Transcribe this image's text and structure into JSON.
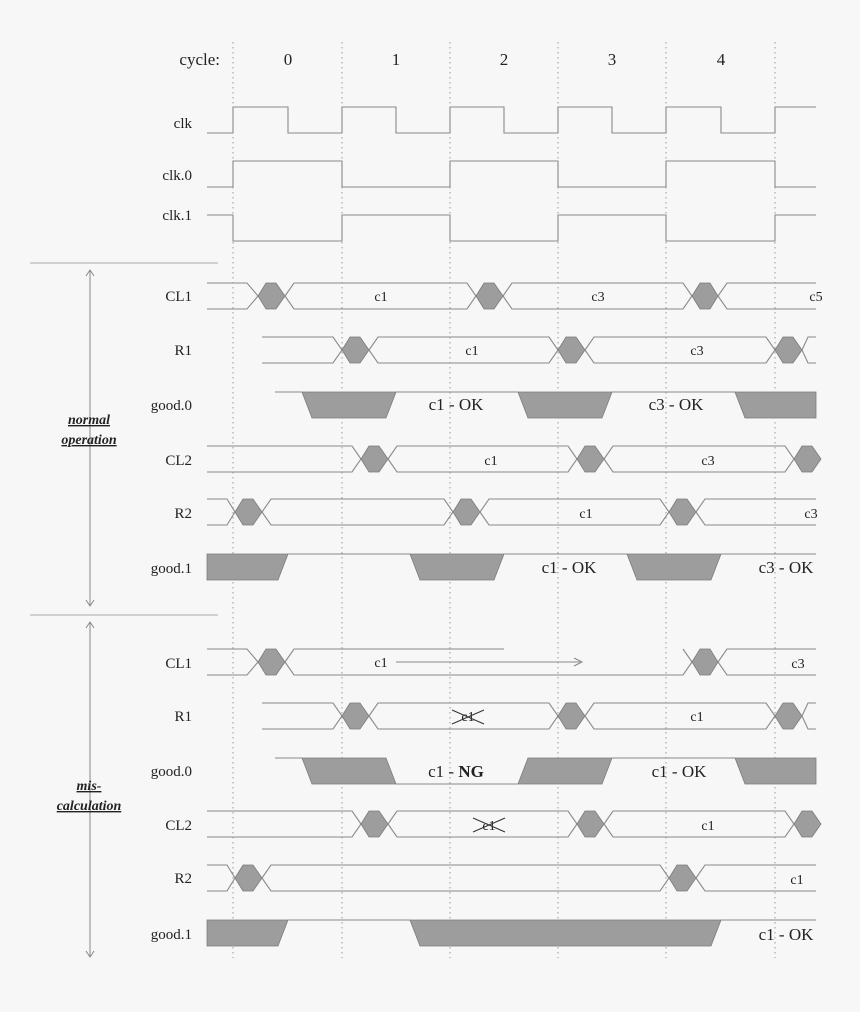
{
  "cycle_header": {
    "label": "cycle:",
    "cycles": [
      "0",
      "1",
      "2",
      "3",
      "4"
    ]
  },
  "clock_signals": [
    "clk",
    "clk.0",
    "clk.1"
  ],
  "sections": [
    {
      "title_line1": "normal",
      "title_line2": "operation",
      "signals": [
        {
          "name": "CL1",
          "values": [
            "c1",
            "c3",
            "c5"
          ]
        },
        {
          "name": "R1",
          "values": [
            "c1",
            "c3"
          ]
        },
        {
          "name": "good.0",
          "values": [
            "c1 - OK",
            "c3 - OK"
          ]
        },
        {
          "name": "CL2",
          "values": [
            "c1",
            "c3"
          ]
        },
        {
          "name": "R2",
          "values": [
            "c1",
            "c3"
          ]
        },
        {
          "name": "good.1",
          "values": [
            "c1 - OK",
            "c3 - OK"
          ]
        }
      ]
    },
    {
      "title_line1": "mis-",
      "title_line2": "calculation",
      "signals": [
        {
          "name": "CL1",
          "values": [
            "c1",
            "c3"
          ]
        },
        {
          "name": "R1",
          "values": [
            "c1",
            "c1"
          ]
        },
        {
          "name": "good.0",
          "values": [
            "c1 - ",
            "NG",
            "c1 - OK"
          ]
        },
        {
          "name": "CL2",
          "values": [
            "c1",
            "c1"
          ]
        },
        {
          "name": "R2",
          "values": [
            "c1"
          ]
        },
        {
          "name": "good.1",
          "values": [
            "c1 - OK"
          ]
        }
      ]
    }
  ]
}
